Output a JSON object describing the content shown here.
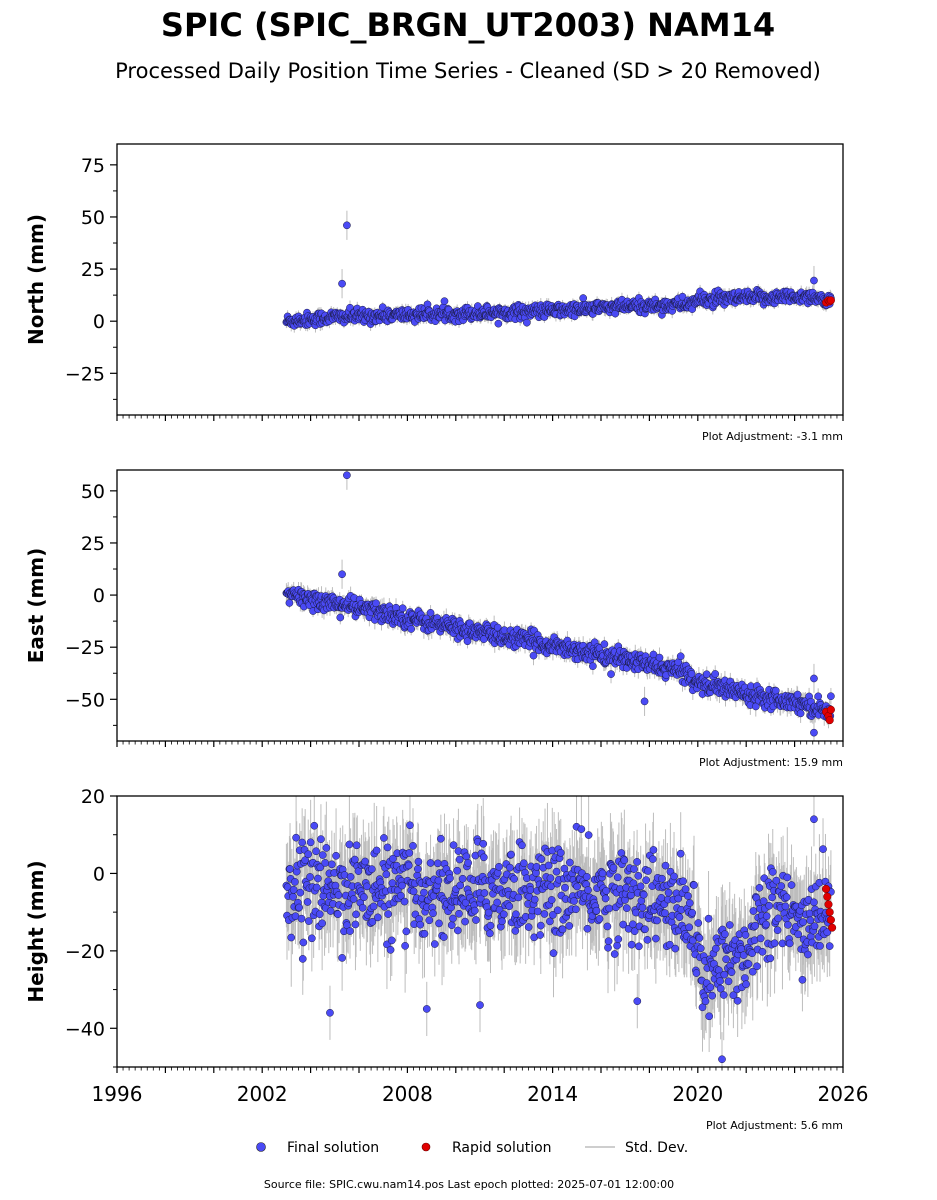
{
  "title": "SPIC (SPIC_BRGN_UT2003) NAM14",
  "subtitle": "Processed Daily Position Time Series - Cleaned (SD > 20 Removed)",
  "legend": {
    "final": "Final solution",
    "rapid": "Rapid solution",
    "sd": "Std. Dev."
  },
  "footer": "Source file: SPIC.cwu.nam14.pos  Last epoch plotted: 2025-07-01 12:00:00",
  "colors": {
    "final": "#4a4af5",
    "rapid": "#e00000",
    "sd": "#bdbdbd",
    "axis": "#000000"
  },
  "chart_data": [
    {
      "type": "scatter",
      "ylabel": "North (mm)",
      "adjustment": "Plot Adjustment: -3.1 mm",
      "xlim": [
        1996,
        2026
      ],
      "ylim": [
        -45,
        85
      ],
      "yticks": [
        -25,
        0,
        25,
        50,
        75
      ],
      "ytick_labels": [
        "−25",
        "0",
        "25",
        "50",
        "75"
      ],
      "final_trend": [
        [
          2003.0,
          0
        ],
        [
          2005.0,
          2
        ],
        [
          2008.0,
          3
        ],
        [
          2011.0,
          4
        ],
        [
          2014.0,
          5
        ],
        [
          2017.0,
          7
        ],
        [
          2019.5,
          8
        ],
        [
          2020.0,
          10
        ],
        [
          2022.0,
          11
        ],
        [
          2024.7,
          12
        ],
        [
          2025.5,
          9
        ]
      ],
      "scatter_sd": 1.6,
      "outliers": [
        [
          2005.3,
          18
        ],
        [
          2005.5,
          46
        ],
        [
          2024.8,
          19.5
        ]
      ],
      "rapid": [
        [
          2025.3,
          9
        ],
        [
          2025.4,
          10
        ],
        [
          2025.45,
          9.5
        ],
        [
          2025.5,
          10
        ]
      ]
    },
    {
      "type": "scatter",
      "ylabel": "East (mm)",
      "adjustment": "Plot Adjustment: 15.9 mm",
      "xlim": [
        1996,
        2026
      ],
      "ylim": [
        -70,
        60
      ],
      "yticks": [
        -50,
        -25,
        0,
        25,
        50
      ],
      "ytick_labels": [
        "−50",
        "−25",
        "0",
        "25",
        "50"
      ],
      "final_trend": [
        [
          2003.0,
          0
        ],
        [
          2005.0,
          -4
        ],
        [
          2008.0,
          -11
        ],
        [
          2011.0,
          -18
        ],
        [
          2014.0,
          -24
        ],
        [
          2017.0,
          -31
        ],
        [
          2019.5,
          -37
        ],
        [
          2020.0,
          -42
        ],
        [
          2022.0,
          -47
        ],
        [
          2024.0,
          -51
        ],
        [
          2025.5,
          -56
        ]
      ],
      "scatter_sd": 2.2,
      "outliers": [
        [
          2005.3,
          10
        ],
        [
          2005.5,
          57.5
        ],
        [
          2017.8,
          -51
        ],
        [
          2024.8,
          -40
        ],
        [
          2024.8,
          -66
        ]
      ],
      "rapid": [
        [
          2025.3,
          -56
        ],
        [
          2025.4,
          -58
        ],
        [
          2025.45,
          -60
        ],
        [
          2025.5,
          -55
        ]
      ]
    },
    {
      "type": "scatter",
      "ylabel": "Height (mm)",
      "adjustment": "Plot Adjustment: 5.6 mm",
      "xlim": [
        1996,
        2026
      ],
      "ylim": [
        -50,
        20
      ],
      "yticks": [
        -40,
        -20,
        0,
        20
      ],
      "ytick_labels": [
        "−40",
        "−20",
        "0",
        "20"
      ],
      "xticks": [
        1996,
        2002,
        2008,
        2014,
        2020,
        2026
      ],
      "xtick_labels": [
        "1996",
        "2002",
        "2008",
        "2014",
        "2020",
        "2026"
      ],
      "final_trend": [
        [
          2003.0,
          -3
        ],
        [
          2006.0,
          -4
        ],
        [
          2009.0,
          -5
        ],
        [
          2012.0,
          -4
        ],
        [
          2015.0,
          -5
        ],
        [
          2018.0,
          -6
        ],
        [
          2019.8,
          -12
        ],
        [
          2020.2,
          -28
        ],
        [
          2021.0,
          -24
        ],
        [
          2022.0,
          -20
        ],
        [
          2023.0,
          -6
        ],
        [
          2024.0,
          -14
        ],
        [
          2025.5,
          -9
        ]
      ],
      "scatter_sd": 6.0,
      "outliers": [
        [
          2004.8,
          -36
        ],
        [
          2008.8,
          -35
        ],
        [
          2011.0,
          -34
        ],
        [
          2017.5,
          -33
        ],
        [
          2021.0,
          -48
        ],
        [
          2024.8,
          14
        ]
      ],
      "rapid": [
        [
          2025.3,
          -4
        ],
        [
          2025.35,
          -6
        ],
        [
          2025.4,
          -8
        ],
        [
          2025.45,
          -10
        ],
        [
          2025.5,
          -12
        ],
        [
          2025.55,
          -14
        ]
      ]
    }
  ]
}
